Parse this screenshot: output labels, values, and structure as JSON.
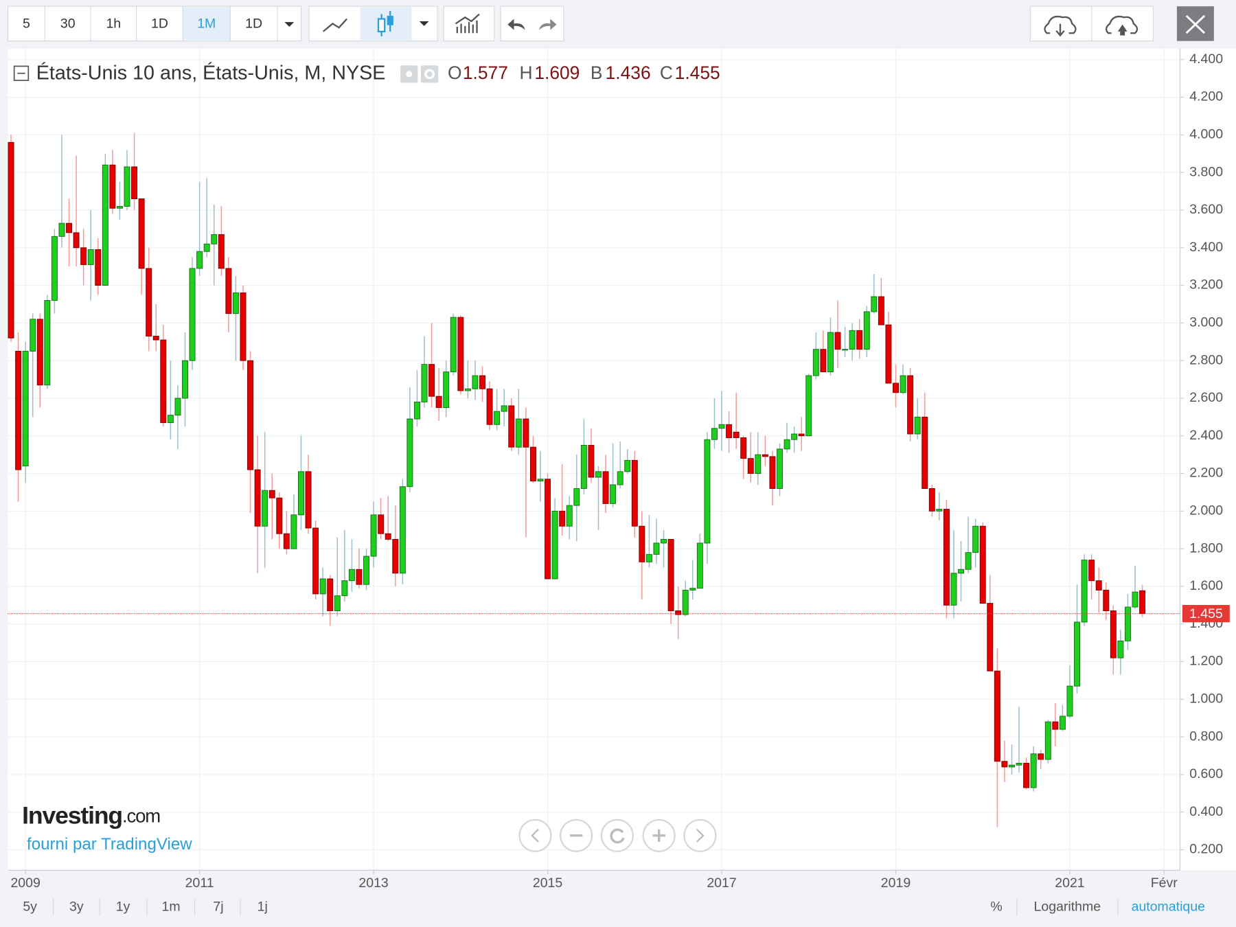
{
  "chart_data": {
    "type": "candlestick",
    "title": "États-Unis 10 ans, États-Unis, M, NYSE",
    "ohlc_labels": [
      "O",
      "H",
      "B",
      "C"
    ],
    "up_color": "#1fcf1f",
    "down_color": "#e50000",
    "wick_up_color": "#9bbfcc",
    "wick_down_color": "#f39a9a",
    "price_line_color": "#e53935",
    "xlim": [
      -0.43,
      161.2
    ],
    "xticks": [
      {
        "value": 2,
        "label": "2009"
      },
      {
        "value": 26,
        "label": "2011"
      },
      {
        "value": 50,
        "label": "2013"
      },
      {
        "value": 74,
        "label": "2015"
      },
      {
        "value": 98,
        "label": "2017"
      },
      {
        "value": 122,
        "label": "2019"
      },
      {
        "value": 146,
        "label": "2021"
      },
      {
        "value": 159,
        "label": "Févr"
      }
    ],
    "ylim": [
      0.091,
      4.457
    ],
    "yticks": [
      {
        "value": 0.2,
        "label": "0.200"
      },
      {
        "value": 0.4,
        "label": "0.400"
      },
      {
        "value": 0.6,
        "label": "0.600"
      },
      {
        "value": 0.8,
        "label": "0.800"
      },
      {
        "value": 1.0,
        "label": "1.000"
      },
      {
        "value": 1.2,
        "label": "1.200"
      },
      {
        "value": 1.4,
        "label": "1.400"
      },
      {
        "value": 1.6,
        "label": "1.600"
      },
      {
        "value": 1.8,
        "label": "1.800"
      },
      {
        "value": 2.0,
        "label": "2.000"
      },
      {
        "value": 2.2,
        "label": "2.200"
      },
      {
        "value": 2.4,
        "label": "2.400"
      },
      {
        "value": 2.6,
        "label": "2.600"
      },
      {
        "value": 2.8,
        "label": "2.800"
      },
      {
        "value": 3.0,
        "label": "3.000"
      },
      {
        "value": 3.2,
        "label": "3.200"
      },
      {
        "value": 3.4,
        "label": "3.400"
      },
      {
        "value": 3.6,
        "label": "3.600"
      },
      {
        "value": 3.8,
        "label": "3.800"
      },
      {
        "value": 4.0,
        "label": "4.000"
      },
      {
        "value": 4.2,
        "label": "4.200"
      },
      {
        "value": 4.4,
        "label": "4.400"
      }
    ],
    "grid": true,
    "ohlc": [
      [
        3.96,
        4.0,
        2.9,
        2.92
      ],
      [
        2.85,
        2.95,
        2.05,
        2.22
      ],
      [
        2.24,
        2.9,
        2.15,
        2.85
      ],
      [
        2.85,
        3.05,
        2.5,
        3.02
      ],
      [
        3.02,
        3.05,
        2.55,
        2.67
      ],
      [
        2.67,
        3.15,
        2.65,
        3.12
      ],
      [
        3.12,
        3.5,
        3.05,
        3.46
      ],
      [
        3.46,
        4.0,
        3.4,
        3.53
      ],
      [
        3.53,
        3.66,
        3.3,
        3.48
      ],
      [
        3.48,
        3.89,
        3.3,
        3.4
      ],
      [
        3.4,
        3.5,
        3.2,
        3.31
      ],
      [
        3.31,
        3.6,
        3.12,
        3.39
      ],
      [
        3.39,
        3.45,
        3.15,
        3.2
      ],
      [
        3.2,
        3.9,
        3.2,
        3.84
      ],
      [
        3.84,
        3.92,
        3.58,
        3.61
      ],
      [
        3.61,
        3.75,
        3.55,
        3.62
      ],
      [
        3.62,
        3.92,
        3.6,
        3.83
      ],
      [
        3.83,
        4.01,
        3.6,
        3.66
      ],
      [
        3.66,
        3.66,
        3.15,
        3.29
      ],
      [
        3.29,
        3.4,
        2.85,
        2.93
      ],
      [
        2.93,
        3.1,
        2.85,
        2.91
      ],
      [
        2.91,
        2.99,
        2.45,
        2.47
      ],
      [
        2.47,
        2.8,
        2.38,
        2.51
      ],
      [
        2.51,
        2.67,
        2.33,
        2.6
      ],
      [
        2.6,
        2.95,
        2.45,
        2.8
      ],
      [
        2.8,
        3.35,
        2.75,
        3.29
      ],
      [
        3.29,
        3.75,
        3.25,
        3.38
      ],
      [
        3.38,
        3.77,
        3.35,
        3.42
      ],
      [
        3.42,
        3.63,
        3.2,
        3.47
      ],
      [
        3.47,
        3.62,
        3.25,
        3.29
      ],
      [
        3.29,
        3.35,
        2.95,
        3.05
      ],
      [
        3.05,
        3.25,
        2.8,
        3.16
      ],
      [
        3.16,
        3.2,
        2.75,
        2.8
      ],
      [
        2.8,
        2.85,
        1.99,
        2.22
      ],
      [
        2.22,
        2.4,
        1.67,
        1.92
      ],
      [
        1.92,
        2.42,
        1.7,
        2.11
      ],
      [
        2.11,
        2.2,
        1.85,
        2.07
      ],
      [
        2.07,
        2.1,
        1.8,
        1.88
      ],
      [
        1.88,
        2.0,
        1.77,
        1.8
      ],
      [
        1.8,
        2.09,
        1.8,
        1.98
      ],
      [
        1.98,
        2.4,
        1.9,
        2.21
      ],
      [
        2.21,
        2.3,
        1.88,
        1.91
      ],
      [
        1.91,
        1.95,
        1.53,
        1.56
      ],
      [
        1.56,
        1.7,
        1.44,
        1.64
      ],
      [
        1.64,
        1.66,
        1.39,
        1.47
      ],
      [
        1.47,
        1.86,
        1.44,
        1.55
      ],
      [
        1.55,
        1.9,
        1.52,
        1.63
      ],
      [
        1.63,
        1.85,
        1.57,
        1.69
      ],
      [
        1.69,
        1.8,
        1.59,
        1.61
      ],
      [
        1.61,
        1.8,
        1.58,
        1.76
      ],
      [
        1.76,
        2.05,
        1.7,
        1.98
      ],
      [
        1.98,
        2.07,
        1.85,
        1.88
      ],
      [
        1.88,
        2.08,
        1.84,
        1.85
      ],
      [
        1.85,
        2.03,
        1.6,
        1.67
      ],
      [
        1.67,
        2.17,
        1.61,
        2.13
      ],
      [
        2.13,
        2.66,
        2.1,
        2.49
      ],
      [
        2.49,
        2.75,
        2.45,
        2.58
      ],
      [
        2.58,
        2.93,
        2.55,
        2.78
      ],
      [
        2.78,
        3.0,
        2.55,
        2.61
      ],
      [
        2.61,
        2.76,
        2.48,
        2.55
      ],
      [
        2.55,
        2.8,
        2.5,
        2.74
      ],
      [
        2.74,
        3.05,
        2.72,
        3.03
      ],
      [
        3.03,
        3.04,
        2.62,
        2.64
      ],
      [
        2.64,
        2.8,
        2.6,
        2.65
      ],
      [
        2.65,
        2.8,
        2.59,
        2.72
      ],
      [
        2.72,
        2.77,
        2.58,
        2.65
      ],
      [
        2.65,
        2.69,
        2.43,
        2.46
      ],
      [
        2.46,
        2.65,
        2.43,
        2.53
      ],
      [
        2.53,
        2.65,
        2.45,
        2.56
      ],
      [
        2.56,
        2.6,
        2.32,
        2.34
      ],
      [
        2.34,
        2.65,
        2.3,
        2.49
      ],
      [
        2.49,
        2.55,
        1.86,
        2.34
      ],
      [
        2.34,
        2.4,
        2.15,
        2.16
      ],
      [
        2.16,
        2.32,
        2.05,
        2.17
      ],
      [
        2.17,
        2.2,
        1.64,
        1.64
      ],
      [
        1.64,
        2.07,
        1.64,
        2.0
      ],
      [
        2.0,
        2.25,
        1.87,
        1.92
      ],
      [
        1.92,
        2.08,
        1.85,
        2.03
      ],
      [
        2.03,
        2.3,
        1.84,
        2.12
      ],
      [
        2.12,
        2.49,
        2.09,
        2.35
      ],
      [
        2.35,
        2.44,
        2.15,
        2.18
      ],
      [
        2.18,
        2.24,
        1.9,
        2.21
      ],
      [
        2.21,
        2.3,
        1.99,
        2.04
      ],
      [
        2.04,
        2.36,
        2.02,
        2.14
      ],
      [
        2.14,
        2.37,
        2.12,
        2.21
      ],
      [
        2.21,
        2.33,
        2.2,
        2.27
      ],
      [
        2.27,
        2.32,
        1.86,
        1.92
      ],
      [
        1.92,
        2.0,
        1.53,
        1.73
      ],
      [
        1.73,
        1.98,
        1.7,
        1.77
      ],
      [
        1.77,
        1.96,
        1.72,
        1.83
      ],
      [
        1.83,
        1.9,
        1.7,
        1.85
      ],
      [
        1.85,
        1.85,
        1.4,
        1.47
      ],
      [
        1.47,
        1.6,
        1.32,
        1.45
      ],
      [
        1.45,
        1.63,
        1.44,
        1.58
      ],
      [
        1.58,
        1.74,
        1.53,
        1.59
      ],
      [
        1.59,
        1.88,
        1.59,
        1.83
      ],
      [
        1.83,
        2.42,
        1.72,
        2.38
      ],
      [
        2.38,
        2.6,
        2.33,
        2.44
      ],
      [
        2.44,
        2.64,
        2.32,
        2.46
      ],
      [
        2.46,
        2.53,
        2.31,
        2.39
      ],
      [
        2.42,
        2.63,
        2.33,
        2.39
      ],
      [
        2.39,
        2.4,
        2.17,
        2.28
      ],
      [
        2.28,
        2.42,
        2.15,
        2.2
      ],
      [
        2.2,
        2.42,
        2.14,
        2.3
      ],
      [
        2.3,
        2.4,
        2.24,
        2.29
      ],
      [
        2.29,
        2.32,
        2.03,
        2.12
      ],
      [
        2.12,
        2.36,
        2.08,
        2.33
      ],
      [
        2.33,
        2.47,
        2.31,
        2.38
      ],
      [
        2.38,
        2.45,
        2.31,
        2.41
      ],
      [
        2.41,
        2.5,
        2.32,
        2.4
      ],
      [
        2.4,
        2.73,
        2.4,
        2.72
      ],
      [
        2.72,
        2.95,
        2.7,
        2.86
      ],
      [
        2.86,
        2.96,
        2.74,
        2.74
      ],
      [
        2.74,
        3.03,
        2.72,
        2.95
      ],
      [
        2.95,
        3.12,
        2.76,
        2.86
      ],
      [
        2.86,
        2.98,
        2.82,
        2.86
      ],
      [
        2.86,
        3.0,
        2.8,
        2.96
      ],
      [
        2.96,
        3.02,
        2.81,
        2.86
      ],
      [
        2.86,
        3.09,
        2.82,
        3.06
      ],
      [
        3.06,
        3.26,
        3.05,
        3.14
      ],
      [
        3.14,
        3.24,
        2.99,
        2.99
      ],
      [
        2.99,
        3.06,
        2.68,
        2.68
      ],
      [
        2.68,
        2.78,
        2.55,
        2.63
      ],
      [
        2.63,
        2.78,
        2.62,
        2.72
      ],
      [
        2.72,
        2.76,
        2.37,
        2.41
      ],
      [
        2.41,
        2.6,
        2.38,
        2.5
      ],
      [
        2.5,
        2.63,
        2.12,
        2.12
      ],
      [
        2.12,
        2.14,
        1.97,
        2.0
      ],
      [
        2.0,
        2.1,
        1.95,
        2.01
      ],
      [
        2.01,
        2.06,
        1.43,
        1.5
      ],
      [
        1.5,
        1.9,
        1.43,
        1.67
      ],
      [
        1.67,
        1.84,
        1.52,
        1.69
      ],
      [
        1.69,
        1.97,
        1.67,
        1.78
      ],
      [
        1.78,
        1.96,
        1.7,
        1.92
      ],
      [
        1.92,
        1.94,
        1.51,
        1.51
      ],
      [
        1.51,
        1.66,
        1.15,
        1.15
      ],
      [
        1.15,
        1.27,
        0.32,
        0.67
      ],
      [
        0.67,
        0.78,
        0.56,
        0.64
      ],
      [
        0.64,
        0.76,
        0.6,
        0.65
      ],
      [
        0.65,
        0.96,
        0.61,
        0.66
      ],
      [
        0.66,
        0.69,
        0.52,
        0.53
      ],
      [
        0.53,
        0.75,
        0.51,
        0.71
      ],
      [
        0.71,
        0.73,
        0.63,
        0.68
      ],
      [
        0.68,
        0.89,
        0.66,
        0.88
      ],
      [
        0.88,
        0.98,
        0.75,
        0.84
      ],
      [
        0.84,
        0.97,
        0.83,
        0.91
      ],
      [
        0.91,
        1.18,
        0.9,
        1.07
      ],
      [
        1.07,
        1.61,
        1.03,
        1.41
      ],
      [
        1.41,
        1.77,
        1.39,
        1.74
      ],
      [
        1.74,
        1.77,
        1.53,
        1.63
      ],
      [
        1.63,
        1.7,
        1.46,
        1.58
      ],
      [
        1.58,
        1.62,
        1.42,
        1.47
      ],
      [
        1.47,
        1.5,
        1.13,
        1.22
      ],
      [
        1.22,
        1.37,
        1.13,
        1.31
      ],
      [
        1.31,
        1.56,
        1.26,
        1.49
      ],
      [
        1.49,
        1.71,
        1.48,
        1.57
      ],
      [
        1.577,
        1.609,
        1.436,
        1.455
      ]
    ]
  },
  "toolbar": {
    "intervals": [
      "5",
      "30",
      "1h",
      "1D",
      "1M",
      "1D"
    ]
  },
  "range_buttons": [
    "5y",
    "3y",
    "1y",
    "1m",
    "7j",
    "1j"
  ],
  "scale_options": [
    "%",
    "Logarithme",
    "automatique"
  ],
  "branding": {
    "logo": "Investing",
    "logo_suffix": ".com",
    "provider": "fourni par TradingView"
  }
}
